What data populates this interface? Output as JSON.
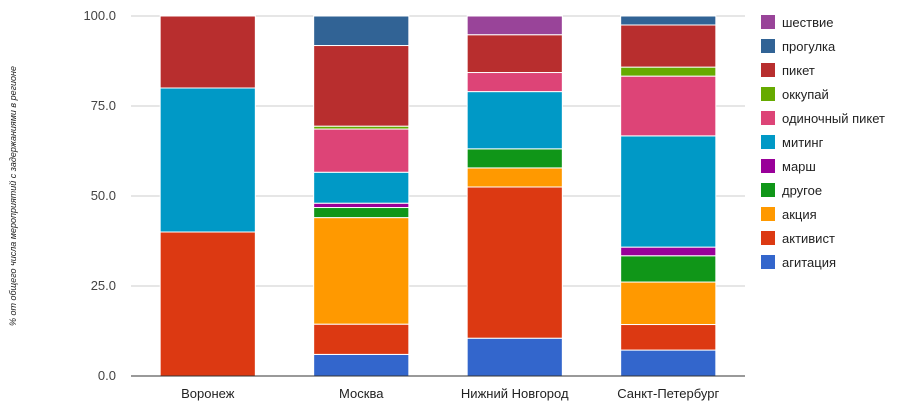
{
  "chart_data": {
    "type": "bar",
    "stacked": true,
    "ylabel": "% от общего числа мероприятий с задержаниями в регионе",
    "ylim": [
      0,
      100
    ],
    "yticks": [
      "0.0",
      "25.0",
      "50.0",
      "75.0",
      "100.0"
    ],
    "categories": [
      "Воронеж",
      "Москва",
      "Нижний Новгород",
      "Санкт-Петербург"
    ],
    "legend_position": "right",
    "series": [
      {
        "name": "агитация",
        "color": "#3366cc",
        "values": [
          0,
          6,
          10.5,
          7.2
        ]
      },
      {
        "name": "активист",
        "color": "#dc3912",
        "values": [
          40,
          8.4,
          42,
          7.1
        ]
      },
      {
        "name": "акция",
        "color": "#ff9900",
        "values": [
          0,
          29.6,
          5.3,
          11.8
        ]
      },
      {
        "name": "другое",
        "color": "#109618",
        "values": [
          0,
          2.8,
          5.3,
          7.3
        ]
      },
      {
        "name": "марш",
        "color": "#990099",
        "values": [
          0,
          1.2,
          0,
          2.4
        ]
      },
      {
        "name": "митинг",
        "color": "#0099c6",
        "values": [
          40,
          8.6,
          15.9,
          30.9
        ]
      },
      {
        "name": "одиночный пикет",
        "color": "#dd4477",
        "values": [
          0,
          12,
          5.3,
          16.6
        ]
      },
      {
        "name": "оккупай",
        "color": "#66aa00",
        "values": [
          0,
          0.8,
          0,
          2.5
        ]
      },
      {
        "name": "пикет",
        "color": "#b82e2e",
        "values": [
          20,
          22.4,
          10.5,
          11.7
        ]
      },
      {
        "name": "прогулка",
        "color": "#316395",
        "values": [
          0,
          8.2,
          0,
          2.5
        ]
      },
      {
        "name": "шествие",
        "color": "#994499",
        "values": [
          0,
          0,
          5.2,
          0
        ]
      }
    ]
  }
}
